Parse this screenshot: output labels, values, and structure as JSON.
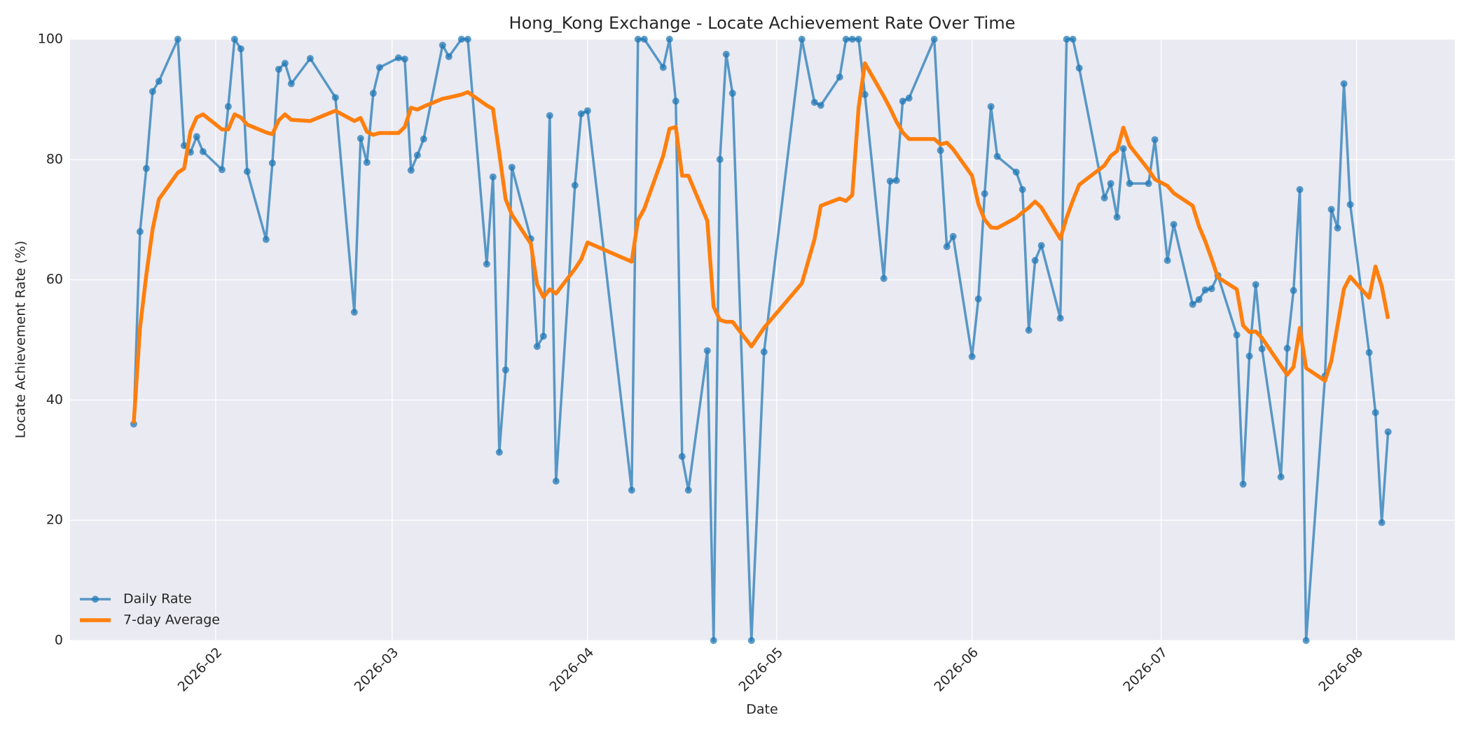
{
  "chart_data": {
    "type": "line",
    "title": "Hong_Kong Exchange - Locate Achievement Rate Over Time",
    "x_label": "Date",
    "y_label": "Locate Achievement Rate (%)",
    "x": [
      19,
      20,
      21,
      22,
      23,
      26,
      27,
      28,
      29,
      30,
      33,
      34,
      35,
      36,
      37,
      40,
      41,
      42,
      43,
      44,
      47,
      51,
      54,
      55,
      56,
      57,
      58,
      61,
      62,
      63,
      64,
      65,
      68,
      69,
      71,
      72,
      75,
      76,
      77,
      78,
      79,
      82,
      83,
      84,
      85,
      86,
      89,
      90,
      91,
      98,
      99,
      100,
      103,
      104,
      105,
      106,
      107,
      110,
      111,
      112,
      113,
      114,
      117,
      119,
      125,
      127,
      128,
      131,
      132,
      133,
      134,
      135,
      138,
      139,
      140,
      141,
      142,
      146,
      147,
      148,
      149,
      152,
      153,
      154,
      155,
      156,
      159,
      160,
      161,
      162,
      163,
      166,
      167,
      168,
      169,
      173,
      174,
      175,
      176,
      177,
      180,
      181,
      183,
      184,
      187,
      188,
      189,
      190,
      191,
      194,
      195,
      196,
      197,
      198,
      201,
      202,
      203,
      204,
      205,
      208,
      209,
      210,
      211,
      212,
      215,
      216,
      217,
      218
    ],
    "series": [
      {
        "name": "Daily Rate",
        "color": "#1f77b4",
        "marker": true,
        "values": [
          36,
          68,
          78.5,
          91.3,
          93,
          100,
          82.3,
          81.2,
          83.8,
          81.3,
          78.3,
          88.8,
          100,
          98.4,
          78,
          66.7,
          79.4,
          95,
          96,
          92.6,
          96.8,
          90.3,
          54.6,
          83.5,
          79.5,
          91,
          95.3,
          96.9,
          96.7,
          78.2,
          80.7,
          83.4,
          99,
          97.1,
          100,
          100,
          62.6,
          77.1,
          31.3,
          45,
          78.7,
          66.8,
          48.9,
          50.6,
          87.3,
          26.5,
          75.7,
          87.6,
          88.1,
          25,
          100,
          100,
          95.3,
          100,
          89.7,
          30.6,
          25,
          48.2,
          0,
          80,
          97.5,
          91,
          0,
          48,
          100,
          89.5,
          89,
          93.7,
          100,
          100,
          100,
          90.8,
          60.2,
          76.4,
          76.5,
          89.7,
          90.2,
          100,
          81.5,
          65.5,
          67.2,
          47.2,
          56.8,
          74.3,
          88.8,
          80.5,
          77.9,
          75,
          51.6,
          63.2,
          65.7,
          53.6,
          100,
          100,
          95.2,
          73.6,
          76,
          70.4,
          81.8,
          76,
          76,
          83.3,
          63.2,
          69.2,
          55.9,
          56.7,
          58.3,
          58.5,
          60.7,
          50.8,
          26,
          47.3,
          59.2,
          48.5,
          27.2,
          48.6,
          58.2,
          75,
          0,
          44,
          71.7,
          68.6,
          92.6,
          72.5,
          47.9,
          37.9,
          19.6,
          34.7
        ]
      },
      {
        "name": "7-day Average",
        "color": "#ff7f0e",
        "marker": false,
        "values": [
          36.1,
          52,
          60.8,
          68.4,
          73.4,
          77.8,
          78.5,
          84.6,
          87,
          87.5,
          85,
          85,
          87.5,
          87,
          85.8,
          84.5,
          84.2,
          86.5,
          87.5,
          86.6,
          86.4,
          88.1,
          86.4,
          86.9,
          84.6,
          84.1,
          84.4,
          84.4,
          85.4,
          88.6,
          88.3,
          88.8,
          90.1,
          90.3,
          90.8,
          91.2,
          89,
          88.4,
          81,
          73.4,
          70.8,
          66,
          59.2,
          57.1,
          58.4,
          57.7,
          61.8,
          63.4,
          66.2,
          63,
          69.9,
          71.8,
          80.6,
          85.1,
          85.4,
          77.3,
          77.3,
          69.8,
          55.5,
          53.3,
          53,
          53,
          48.9,
          52,
          59.4,
          66.7,
          72.3,
          73.5,
          73.1,
          74.1,
          88.6,
          96,
          90.5,
          88.5,
          86.3,
          84.5,
          83.4,
          83.4,
          82.5,
          82.8,
          81.7,
          77.3,
          72.6,
          70,
          68.7,
          68.6,
          70.3,
          71.2,
          72,
          73,
          72,
          66.8,
          70.3,
          73.2,
          75.8,
          79,
          80.6,
          81.4,
          85.3,
          82.3,
          78.3,
          76.7,
          75.6,
          74.4,
          72.3,
          68.9,
          66.4,
          63.5,
          60.4,
          58.4,
          52.4,
          51.3,
          51.4,
          50.3,
          45.7,
          44.2,
          45.5,
          52,
          45.3,
          43.2,
          46.5,
          52.5,
          58.5,
          60.5,
          57,
          62.2,
          58.9,
          53.5
        ]
      }
    ],
    "xlim": [
      8.9,
      228.6
    ],
    "xticks": [
      {
        "value": 32,
        "label": "2026-02"
      },
      {
        "value": 60,
        "label": "2026-03"
      },
      {
        "value": 91,
        "label": "2026-04"
      },
      {
        "value": 121,
        "label": "2026-05"
      },
      {
        "value": 152,
        "label": "2026-06"
      },
      {
        "value": 182,
        "label": "2026-07"
      },
      {
        "value": 213,
        "label": "2026-08"
      }
    ],
    "ylim": [
      0,
      100
    ],
    "yticks": [
      0,
      20,
      40,
      60,
      80,
      100
    ],
    "grid": true,
    "legend": "lower left"
  }
}
